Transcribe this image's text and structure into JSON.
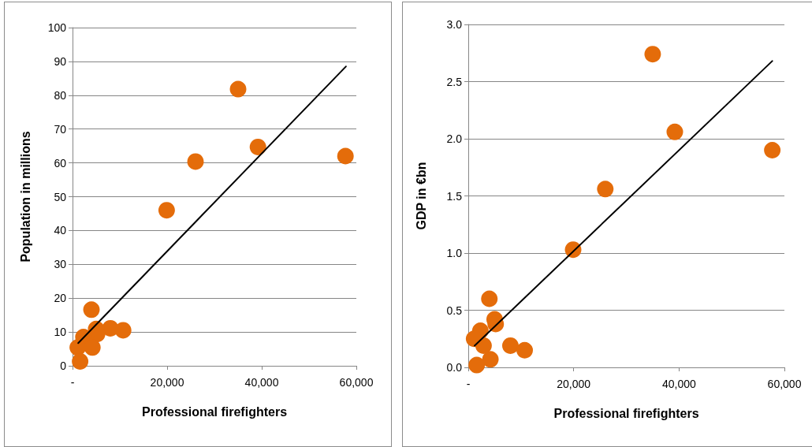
{
  "chart_data": [
    {
      "type": "scatter",
      "xlabel": "Professional firefighters",
      "ylabel": "Population in millions",
      "xlim": [
        0,
        60000
      ],
      "ylim": [
        0,
        100
      ],
      "xticks": [
        {
          "value": 0,
          "label": "-"
        },
        {
          "value": 20000,
          "label": "20,000"
        },
        {
          "value": 40000,
          "label": "40,000"
        },
        {
          "value": 60000,
          "label": "60,000"
        }
      ],
      "yticks": [
        0,
        10,
        20,
        30,
        40,
        50,
        60,
        70,
        80,
        90,
        100
      ],
      "grid": "y",
      "marker": "circle",
      "series": [
        {
          "type": "scatter",
          "color": "#e46c0a",
          "x": [
            35000,
            39200,
            57700,
            26000,
            19900,
            4000,
            8000,
            10700,
            5000,
            5200,
            2300,
            1100,
            2900,
            4200,
            1600
          ],
          "values": [
            81.8,
            64.7,
            62.0,
            60.4,
            46.0,
            16.6,
            11.1,
            10.5,
            10.9,
            9.4,
            8.5,
            5.4,
            null,
            5.4,
            1.3
          ]
        },
        {
          "type": "line",
          "color": "#000000",
          "marker": "none",
          "x": [
            1200,
            57800
          ],
          "values": [
            6.7,
            88.5
          ]
        }
      ]
    },
    {
      "type": "scatter",
      "xlabel": "Professional firefighters",
      "ylabel": "GDP in €bn",
      "xlim": [
        0,
        60000
      ],
      "ylim": [
        0,
        3
      ],
      "xticks": [
        {
          "value": 0,
          "label": "-"
        },
        {
          "value": 20000,
          "label": "20,000"
        },
        {
          "value": 40000,
          "label": "40,000"
        },
        {
          "value": 60000,
          "label": "60,000"
        }
      ],
      "yticks": [
        {
          "value": 0,
          "label": "0.0"
        },
        {
          "value": 0.5,
          "label": "0.5"
        },
        {
          "value": 1,
          "label": "1.0"
        },
        {
          "value": 1.5,
          "label": "1.5"
        },
        {
          "value": 2,
          "label": "2.0"
        },
        {
          "value": 2.5,
          "label": "2.5"
        },
        {
          "value": 3,
          "label": "3.0"
        }
      ],
      "grid": "y",
      "marker": "circle",
      "series": [
        {
          "type": "scatter",
          "color": "#e46c0a",
          "x": [
            35000,
            39200,
            57700,
            26000,
            19900,
            4000,
            8000,
            10700,
            5000,
            5200,
            2300,
            1100,
            2900,
            4200,
            1600
          ],
          "values": [
            2.74,
            2.06,
            1.9,
            1.56,
            1.03,
            0.6,
            0.19,
            0.15,
            0.42,
            0.38,
            0.32,
            0.25,
            0.19,
            0.07,
            0.02
          ]
        },
        {
          "type": "line",
          "color": "#000000",
          "marker": "none",
          "x": [
            1200,
            57700
          ],
          "values": [
            0.19,
            2.68
          ]
        }
      ]
    }
  ]
}
